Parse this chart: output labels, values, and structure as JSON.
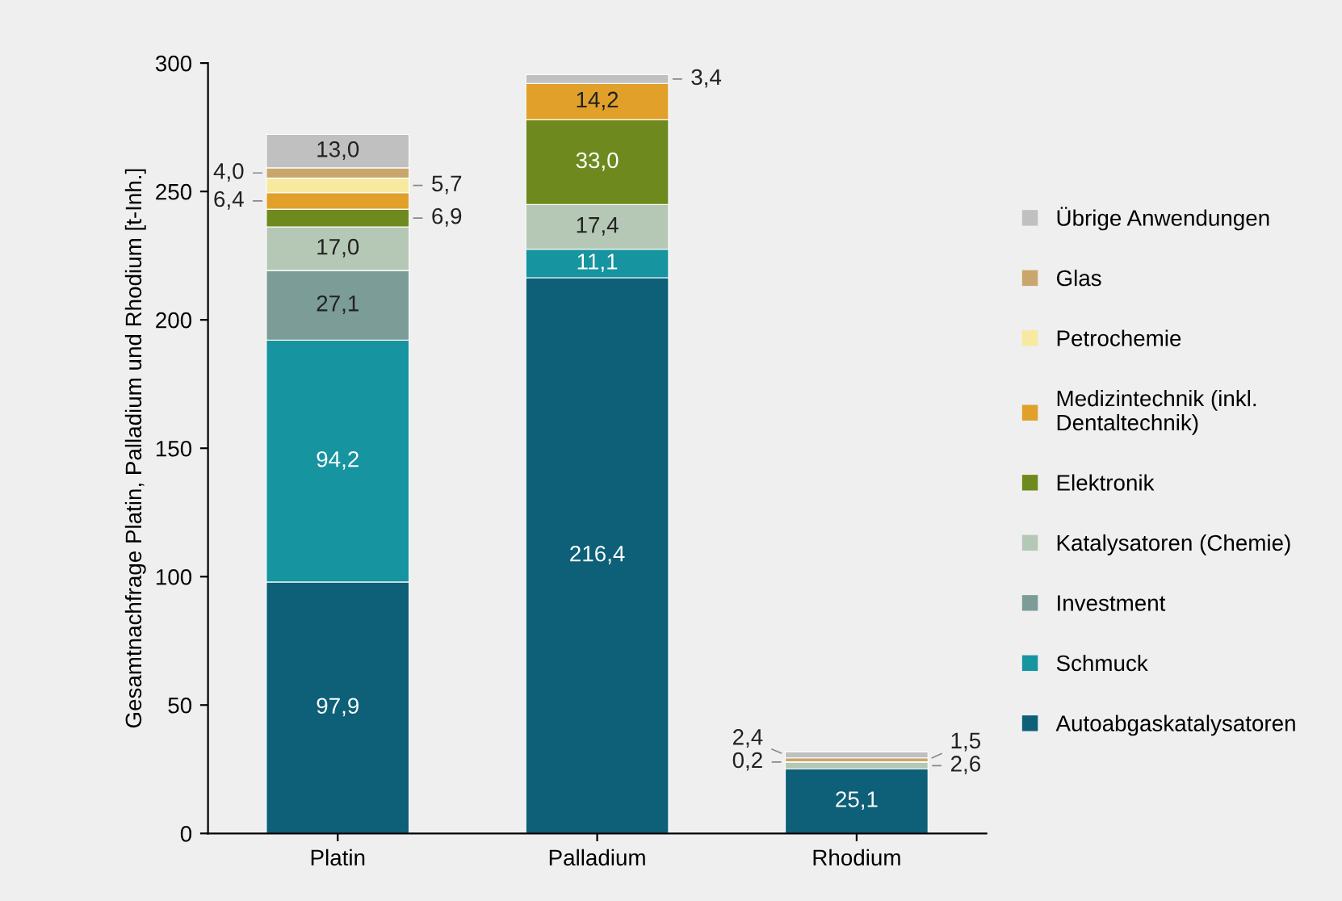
{
  "chart_data": {
    "type": "bar",
    "stacked": true,
    "ylabel": "Gesamtnachfrage Platin, Palladium und Rhodium [t-Inh.]",
    "categories": [
      "Platin",
      "Palladium",
      "Rhodium"
    ],
    "ylim": [
      0,
      300
    ],
    "yticks": [
      0,
      50,
      100,
      150,
      200,
      250,
      300
    ],
    "grid": false,
    "legend": "right",
    "data_labels": true,
    "series": [
      {
        "name": "Autoabgaskatalysatoren",
        "color": "#0e5f78",
        "values": [
          97.9,
          216.4,
          25.1
        ],
        "value_labels": [
          "97,9",
          "216,4",
          "25,1"
        ]
      },
      {
        "name": "Schmuck",
        "color": "#16949f",
        "values": [
          94.2,
          11.1,
          null
        ],
        "value_labels": [
          "94,2",
          "11,1",
          null
        ]
      },
      {
        "name": "Investment",
        "color": "#7c9c97",
        "values": [
          27.1,
          null,
          null
        ],
        "value_labels": [
          "27,1",
          null,
          null
        ]
      },
      {
        "name": "Katalysatoren (Chemie)",
        "color": "#b4c8b5",
        "values": [
          17.0,
          17.4,
          2.6
        ],
        "value_labels": [
          "17,0",
          "17,4",
          "2,6"
        ]
      },
      {
        "name": "Elektronik",
        "color": "#6e8a1f",
        "values": [
          6.9,
          33.0,
          0.2
        ],
        "value_labels": [
          "6,9",
          "33,0",
          "0,2"
        ]
      },
      {
        "name": "Medizintechnik (inkl.\nDentaltechnik)",
        "color": "#e0a02a",
        "values": [
          6.4,
          14.2,
          null
        ],
        "value_labels": [
          "6,4",
          "14,2",
          null
        ]
      },
      {
        "name": "Petrochemie",
        "color": "#f7e9a0",
        "values": [
          5.7,
          null,
          null
        ],
        "value_labels": [
          "5,7",
          null,
          null
        ]
      },
      {
        "name": "Glas",
        "color": "#c9a66b",
        "values": [
          4.0,
          null,
          1.5
        ],
        "value_labels": [
          "4,0",
          null,
          "1,5"
        ]
      },
      {
        "name": "Übrige Anwendungen",
        "color": "#c0c0c0",
        "values": [
          13.0,
          3.4,
          2.4
        ],
        "value_labels": [
          "13,0",
          "3,4",
          "2,4"
        ]
      }
    ]
  }
}
